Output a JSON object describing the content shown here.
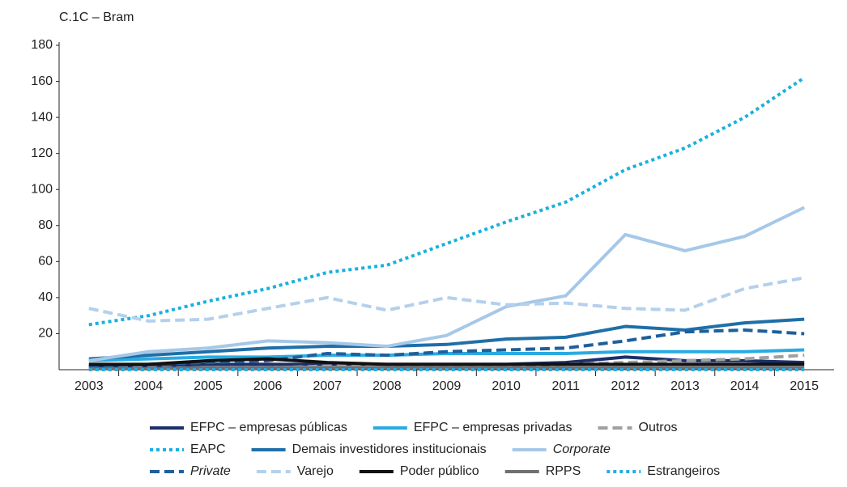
{
  "chart_data": {
    "type": "line",
    "title": "C.1C – Bram",
    "x": [
      "2003",
      "2004",
      "2005",
      "2006",
      "2007",
      "2008",
      "2009",
      "2010",
      "2011",
      "2012",
      "2013",
      "2014",
      "2015"
    ],
    "ylim": [
      0,
      180
    ],
    "yticks": [
      20,
      40,
      60,
      80,
      100,
      120,
      140,
      160,
      180
    ],
    "series": [
      {
        "name": "EFPC – empresas públicas",
        "color": "#1b2f6b",
        "dash": "solid",
        "values": [
          2,
          2,
          3,
          3,
          3,
          3,
          3,
          3,
          4,
          7,
          5,
          5,
          4
        ]
      },
      {
        "name": "EFPC – empresas privadas",
        "color": "#29abe2",
        "dash": "solid",
        "values": [
          5,
          6,
          7,
          7,
          8,
          8,
          9,
          9,
          9,
          10,
          10,
          10,
          11
        ]
      },
      {
        "name": "Outros",
        "color": "#a0a0a0",
        "dash": "dashed",
        "values": [
          1,
          1,
          1,
          1,
          2,
          2,
          2,
          2,
          3,
          4,
          5,
          6,
          8
        ]
      },
      {
        "name": "EAPC",
        "color": "#1ab0e0",
        "dash": "dotted",
        "values": [
          25,
          30,
          38,
          45,
          54,
          58,
          70,
          82,
          93,
          111,
          123,
          140,
          162
        ]
      },
      {
        "name": "Demais investidores institucionais",
        "color": "#1f6fa8",
        "dash": "solid",
        "values": [
          6,
          8,
          10,
          12,
          13,
          13,
          14,
          17,
          18,
          24,
          22,
          26,
          28
        ]
      },
      {
        "name": "Corporate",
        "color": "#a6c8e8",
        "dash": "solid",
        "italic": true,
        "values": [
          5,
          10,
          12,
          16,
          15,
          13,
          19,
          35,
          41,
          75,
          66,
          74,
          90
        ]
      },
      {
        "name": "Private",
        "color": "#1f5f9a",
        "dash": "dashed",
        "italic": true,
        "values": [
          2,
          3,
          4,
          5,
          9,
          8,
          10,
          11,
          12,
          16,
          21,
          22,
          20
        ]
      },
      {
        "name": "Varejo",
        "color": "#b4d0ec",
        "dash": "dashed",
        "values": [
          34,
          27,
          28,
          34,
          40,
          33,
          40,
          36,
          37,
          34,
          33,
          45,
          51
        ]
      },
      {
        "name": "Poder público",
        "color": "#111111",
        "dash": "solid",
        "values": [
          3,
          3,
          5,
          6,
          4,
          3,
          3,
          3,
          3,
          3,
          3,
          3,
          3
        ]
      },
      {
        "name": "RPPS",
        "color": "#707070",
        "dash": "solid",
        "values": [
          0.5,
          0.5,
          1,
          1,
          1,
          1,
          1,
          1,
          1,
          1,
          1,
          1,
          1
        ]
      },
      {
        "name": "Estrangeiros",
        "color": "#29abe2",
        "dash": "dotted",
        "values": [
          0,
          0,
          0,
          0,
          0,
          0,
          0,
          0,
          0,
          0,
          0,
          0,
          0
        ]
      }
    ]
  }
}
